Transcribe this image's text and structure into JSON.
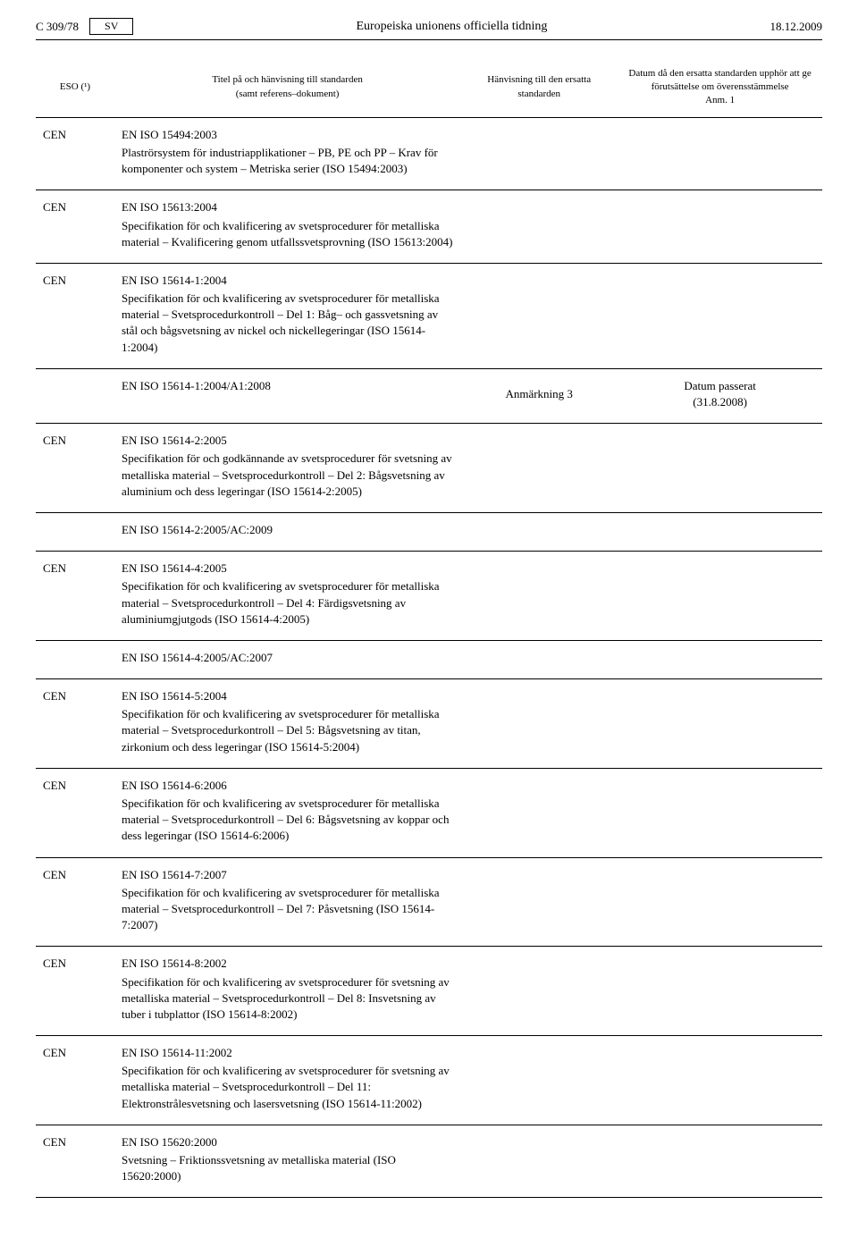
{
  "header": {
    "page_number": "C 309/78",
    "language_code": "SV",
    "publication_title": "Europeiska unionens officiella tidning",
    "date": "18.12.2009"
  },
  "table_headers": {
    "eso": "ESO (¹)",
    "title": "Titel på och hänvisning till standarden\n(samt referens–dokument)",
    "reference": "Hänvisning till den ersatta standarden",
    "expiry": "Datum då den ersatta standarden upphör att ge förutsättelse om överensstämmelse\nAnm. 1"
  },
  "rows": [
    {
      "eso": "CEN",
      "code": "EN ISO 15494:2003",
      "desc": "Plaströrsystem för industriapplikationer – PB, PE och PP – Krav för komponenter och system – Metriska serier (ISO 15494:2003)",
      "ref": "",
      "date": ""
    },
    {
      "eso": "CEN",
      "code": "EN ISO 15613:2004",
      "desc": "Specifikation för och kvalificering av svetsprocedurer för metalliska material – Kvalificering genom utfallssvetsprovning (ISO 15613:2004)",
      "ref": "",
      "date": ""
    },
    {
      "eso": "CEN",
      "code": "EN ISO 15614-1:2004",
      "desc": "Specifikation för och kvalificering av svetsprocedurer för metalliska material – Svetsprocedurkontroll – Del 1: Båg– och gassvetsning av stål och bågsvetsning av nickel och nickellegeringar (ISO 15614-1:2004)",
      "ref": "",
      "date": "",
      "sub": {
        "code": "EN ISO 15614-1:2004/A1:2008",
        "ref": "Anmärkning 3",
        "date": "Datum passerat\n(31.8.2008)"
      }
    },
    {
      "eso": "CEN",
      "code": "EN ISO 15614-2:2005",
      "desc": "Specifikation för och godkännande av svetsprocedurer för svetsning av metalliska material – Svetsprocedurkontroll – Del 2: Bågsvetsning av aluminium och dess legeringar (ISO 15614-2:2005)",
      "ref": "",
      "date": "",
      "sub": {
        "code": "EN ISO 15614-2:2005/AC:2009",
        "ref": "",
        "date": ""
      }
    },
    {
      "eso": "CEN",
      "code": "EN ISO 15614-4:2005",
      "desc": "Specifikation för och kvalificering av svetsprocedurer för metalliska material – Svetsprocedurkontroll – Del 4: Färdigsvetsning av aluminiumgjutgods (ISO 15614-4:2005)",
      "ref": "",
      "date": "",
      "sub": {
        "code": "EN ISO 15614-4:2005/AC:2007",
        "ref": "",
        "date": ""
      }
    },
    {
      "eso": "CEN",
      "code": "EN ISO 15614-5:2004",
      "desc": "Specifikation för och kvalificering av svetsprocedurer för metalliska material – Svetsprocedurkontroll – Del 5: Bågsvetsning av titan, zirkonium och dess legeringar (ISO 15614-5:2004)",
      "ref": "",
      "date": ""
    },
    {
      "eso": "CEN",
      "code": "EN ISO 15614-6:2006",
      "desc": "Specifikation för och kvalificering av svetsprocedurer för metalliska material – Svetsprocedurkontroll – Del 6: Bågsvetsning av koppar och dess legeringar (ISO 15614-6:2006)",
      "ref": "",
      "date": ""
    },
    {
      "eso": "CEN",
      "code": "EN ISO 15614-7:2007",
      "desc": "Specifikation för och kvalificering av svetsprocedurer för metalliska material – Svetsprocedurkontroll – Del 7: Påsvetsning (ISO 15614-7:2007)",
      "ref": "",
      "date": ""
    },
    {
      "eso": "CEN",
      "code": "EN ISO 15614-8:2002",
      "desc": "Specifikation för och kvalificering av svetsprocedurer för svetsning av metalliska material – Svetsprocedurkontroll – Del 8: Insvetsning av tuber i tubplattor (ISO 15614-8:2002)",
      "ref": "",
      "date": ""
    },
    {
      "eso": "CEN",
      "code": "EN ISO 15614-11:2002",
      "desc": "Specifikation för och kvalificering av svetsprocedurer för svetsning av metalliska material – Svetsprocedurkontroll – Del 11: Elektronstrålesvetsning och lasersvetsning (ISO 15614-11:2002)",
      "ref": "",
      "date": ""
    },
    {
      "eso": "CEN",
      "code": "EN ISO 15620:2000",
      "desc": "Svetsning – Friktionssvetsning av metalliska material (ISO 15620:2000)",
      "ref": "",
      "date": ""
    }
  ]
}
